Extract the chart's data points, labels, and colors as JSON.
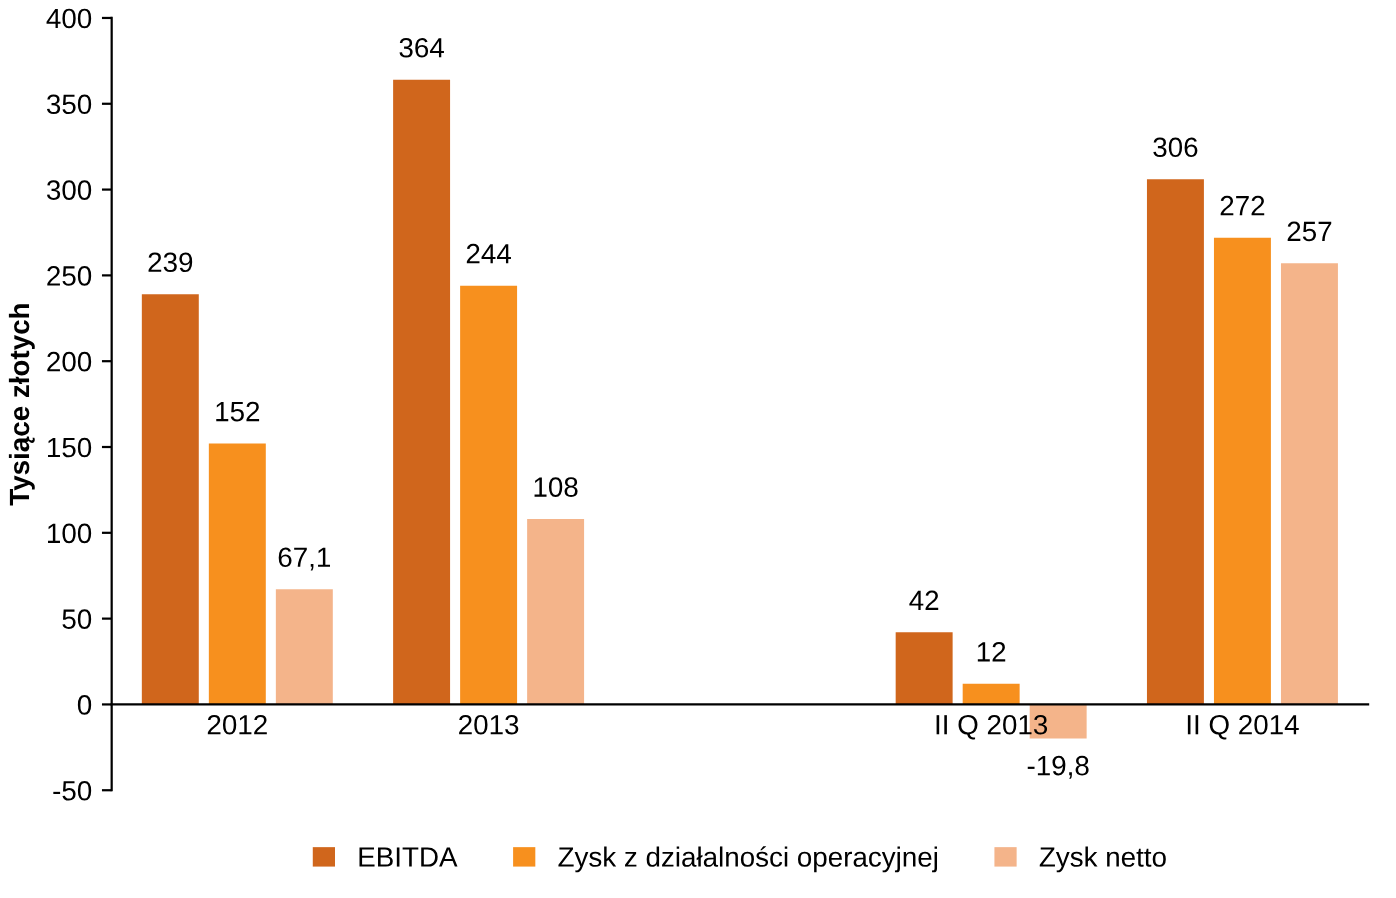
{
  "chart_data": {
    "type": "bar",
    "ylabel": "Tysiące złotych",
    "categories": [
      "2012",
      "2013",
      null,
      "II Q 2013",
      "II Q 2014"
    ],
    "series": [
      {
        "name": "EBITDA",
        "color": "#d0661c",
        "values": [
          239,
          364,
          null,
          42,
          306
        ],
        "value_labels": [
          "239",
          "364",
          null,
          "42",
          "306"
        ]
      },
      {
        "name": "Zysk z działalności operacyjnej",
        "color": "#f7901e",
        "values": [
          152,
          244,
          null,
          12,
          272
        ],
        "value_labels": [
          "152",
          "244",
          null,
          "12",
          "272"
        ]
      },
      {
        "name": "Zysk netto",
        "color": "#f4b48a",
        "values": [
          67.1,
          108,
          null,
          -19.8,
          257
        ],
        "value_labels": [
          "67,1",
          "108",
          null,
          "-19,8",
          "257"
        ]
      }
    ],
    "ylim": [
      -50,
      400
    ],
    "yticks": [
      -50,
      0,
      50,
      100,
      150,
      200,
      250,
      300,
      350,
      400
    ],
    "grid": false,
    "legend": "bottom"
  }
}
